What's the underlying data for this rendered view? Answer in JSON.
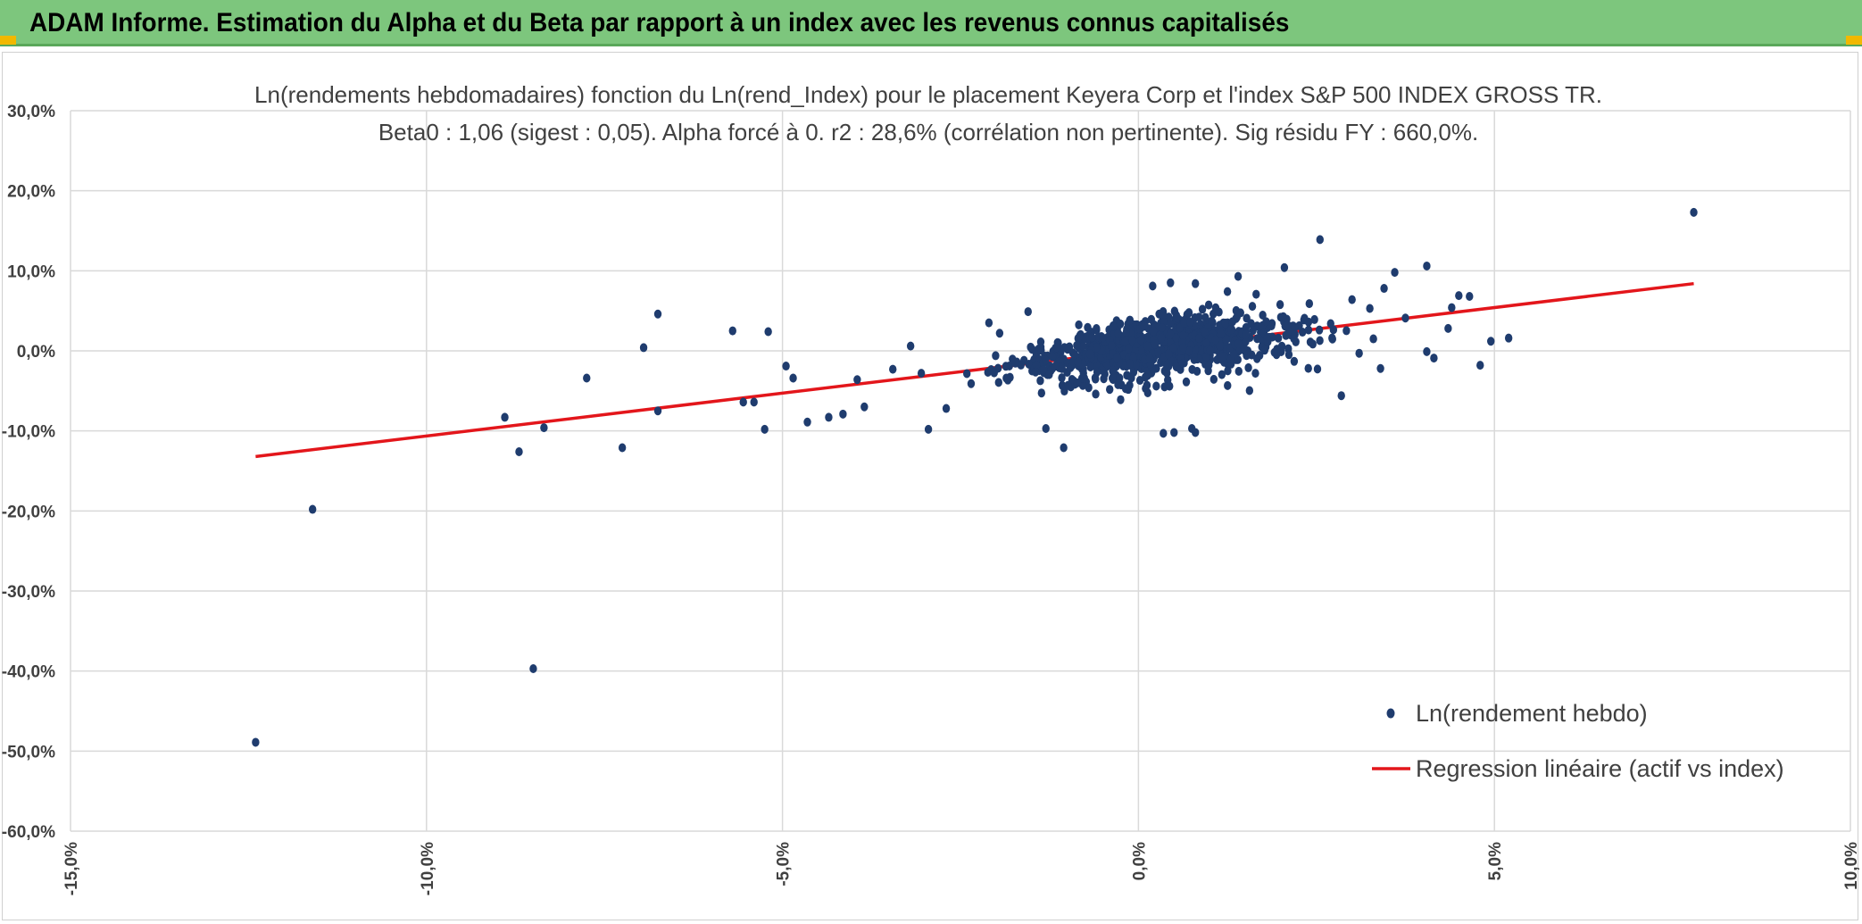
{
  "header": {
    "title": "ADAM Informe. Estimation du Alpha et du Beta par rapport à un index avec les revenus connus capitalisés",
    "color": "#7dc67d"
  },
  "chart_data": {
    "type": "scatter",
    "title_line1": "Ln(rendements hebdomadaires) fonction du Ln(rend_Index) pour le placement Keyera Corp et l'index S&P 500 INDEX GROSS TR.",
    "title_line2": "Beta0 : 1,06 (sigest : 0,05). Alpha forcé à 0. r2 : 28,6% (corrélation non pertinente). Sig résidu FY : 660,0%.",
    "xlim": [
      -15,
      10
    ],
    "ylim": [
      -60,
      30
    ],
    "x_ticks": [
      -15,
      -10,
      -5,
      0,
      5,
      10
    ],
    "x_tick_labels": [
      "-15,0%",
      "-10,0%",
      "-5,0%",
      "0,0%",
      "5,0%",
      "10,0%"
    ],
    "y_ticks": [
      30,
      20,
      10,
      0,
      -10,
      -20,
      -30,
      -40,
      -50,
      -60
    ],
    "y_tick_labels": [
      "30,0%",
      "20,0%",
      "10,0%",
      "0,0%",
      "-10,0%",
      "-20,0%",
      "-30,0%",
      "-40,0%",
      "-50,0%",
      "-60,0%"
    ],
    "grid": true,
    "legend_position": "bottom-right",
    "series": [
      {
        "name": "Ln(rendement hebdo)",
        "kind": "scatter",
        "color": "#1f3c6e",
        "points": [
          [
            -12.4,
            -48.9
          ],
          [
            -11.6,
            -19.8
          ],
          [
            -8.5,
            -39.7
          ],
          [
            -8.9,
            -8.3
          ],
          [
            -8.7,
            -12.6
          ],
          [
            -8.35,
            -9.6
          ],
          [
            -7.75,
            -3.4
          ],
          [
            -7.25,
            -12.1
          ],
          [
            -6.95,
            0.4
          ],
          [
            -6.75,
            4.6
          ],
          [
            -6.75,
            -7.5
          ],
          [
            -5.7,
            2.5
          ],
          [
            -5.55,
            -6.4
          ],
          [
            -5.4,
            -6.4
          ],
          [
            -5.2,
            2.4
          ],
          [
            -5.25,
            -9.8
          ],
          [
            -4.95,
            -1.9
          ],
          [
            -4.85,
            -3.4
          ],
          [
            -4.65,
            -8.9
          ],
          [
            -4.35,
            -8.3
          ],
          [
            -4.15,
            -7.9
          ],
          [
            -3.95,
            -3.6
          ],
          [
            -3.85,
            -7.0
          ],
          [
            -3.45,
            -2.3
          ],
          [
            -3.2,
            0.6
          ],
          [
            -3.05,
            -2.8
          ],
          [
            -2.95,
            -9.8
          ],
          [
            -2.7,
            -7.2
          ],
          [
            -2.35,
            -4.1
          ],
          [
            -2.1,
            3.5
          ],
          [
            -1.95,
            2.2
          ],
          [
            -1.55,
            4.9
          ],
          [
            -1.3,
            -9.7
          ],
          [
            -1.05,
            -12.1
          ],
          [
            -0.95,
            -4.5
          ],
          [
            -0.6,
            -5.4
          ],
          [
            -0.25,
            -6.1
          ],
          [
            0.1,
            -4.7
          ],
          [
            0.35,
            -10.3
          ],
          [
            0.5,
            -10.2
          ],
          [
            0.75,
            -9.7
          ],
          [
            0.8,
            -10.2
          ],
          [
            0.2,
            8.1
          ],
          [
            0.45,
            8.5
          ],
          [
            0.8,
            8.4
          ],
          [
            1.4,
            9.3
          ],
          [
            1.25,
            7.4
          ],
          [
            2.05,
            10.4
          ],
          [
            2.55,
            13.9
          ],
          [
            3.25,
            5.3
          ],
          [
            3.45,
            7.8
          ],
          [
            3.6,
            9.8
          ],
          [
            3.75,
            4.1
          ],
          [
            4.05,
            10.6
          ],
          [
            4.05,
            -0.1
          ],
          [
            4.15,
            -0.9
          ],
          [
            4.35,
            2.8
          ],
          [
            4.4,
            5.4
          ],
          [
            4.5,
            6.9
          ],
          [
            4.65,
            6.8
          ],
          [
            4.8,
            -1.8
          ],
          [
            4.95,
            1.2
          ],
          [
            5.2,
            1.6
          ],
          [
            7.8,
            17.3
          ],
          [
            2.0,
            4.2
          ],
          [
            2.4,
            5.9
          ],
          [
            2.7,
            3.4
          ],
          [
            2.85,
            -5.6
          ],
          [
            3.1,
            -0.3
          ],
          [
            3.3,
            1.5
          ],
          [
            3.4,
            -2.2
          ],
          [
            3.0,
            6.4
          ]
        ]
      },
      {
        "name": "Regression linéaire (actif vs index)",
        "kind": "line",
        "color": "#e3161b",
        "points": [
          [
            -12.4,
            -13.2
          ],
          [
            7.8,
            8.4
          ]
        ]
      }
    ]
  }
}
